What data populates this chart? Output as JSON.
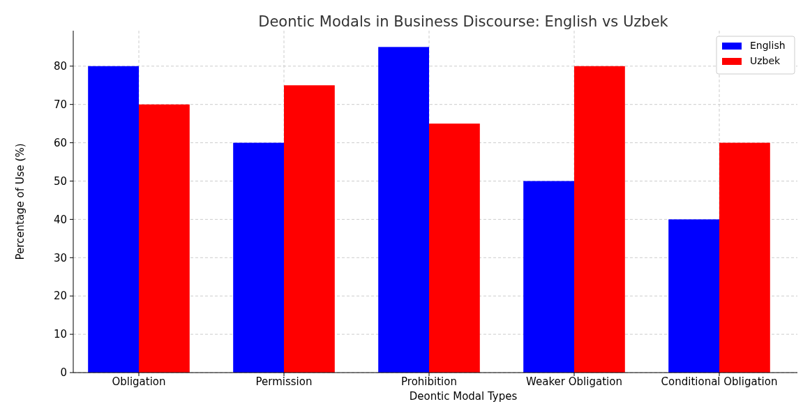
{
  "chart_data": {
    "type": "bar",
    "title": "Deontic Modals in Business Discourse: English vs Uzbek",
    "xlabel": "Deontic Modal Types",
    "ylabel": "Percentage of Use (%)",
    "categories": [
      "Obligation",
      "Permission",
      "Prohibition",
      "Weaker Obligation",
      "Conditional Obligation"
    ],
    "series": [
      {
        "name": "English",
        "color": "#0000ff",
        "values": [
          80,
          60,
          85,
          50,
          40
        ]
      },
      {
        "name": "Uzbek",
        "color": "#ff0000",
        "values": [
          70,
          75,
          65,
          80,
          60
        ]
      }
    ],
    "ylim": [
      0,
      89.25
    ],
    "yticks": [
      0,
      10,
      20,
      30,
      40,
      50,
      60,
      70,
      80
    ],
    "grid": true,
    "legend": "top right"
  }
}
